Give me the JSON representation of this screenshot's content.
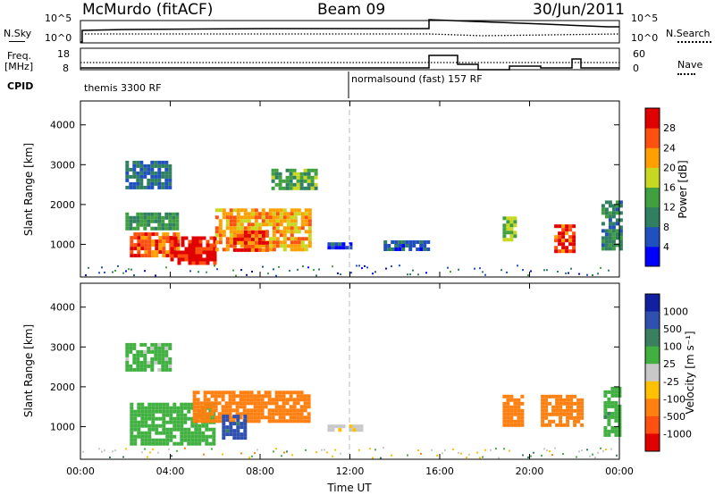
{
  "header": {
    "station": "McMurdo (fitACF)",
    "beam": "Beam 09",
    "date": "30/Jun/2011"
  },
  "panels": {
    "nsky_label": "N.Sky",
    "nsearch_label": "N.Search",
    "freq_label": "Freq.",
    "freq_unit": "[MHz]",
    "nave_label": "Nave",
    "cpid_label": "CPID",
    "noise_left_ticks": [
      "10^5",
      "10^0"
    ],
    "noise_right_ticks": [
      "10^5",
      "10^0"
    ],
    "freq_left_ticks": [
      "18",
      "8"
    ],
    "nave_right_ticks": [
      "60",
      "0"
    ],
    "cpid_segments": [
      "themis 3300 RF",
      "normalsound (fast) 157 RF"
    ]
  },
  "axes": {
    "y_label": "Slant Range [km]",
    "y_ticks": [
      "1000",
      "2000",
      "3000",
      "4000"
    ],
    "x_label": "Time UT",
    "x_ticks": [
      "00:00",
      "04:00",
      "08:00",
      "12:00",
      "16:00",
      "20:00",
      "00:00"
    ]
  },
  "colorbars": {
    "power": {
      "label": "Power [dB]",
      "ticks": [
        "4",
        "8",
        "12",
        "16",
        "20",
        "24",
        "28"
      ]
    },
    "velocity": {
      "label": "Velocity [m s⁻¹]",
      "ticks": [
        "1000",
        "500",
        "100",
        "25",
        "-25",
        "-100",
        "-500",
        "-1000"
      ]
    }
  },
  "chart_data": [
    {
      "type": "heatmap",
      "quantity": "power",
      "units": "dB",
      "xlabel": "Time UT",
      "ylabel": "Slant Range [km]",
      "xlim": [
        0,
        24
      ],
      "ylim": [
        180,
        4600
      ],
      "clim": [
        0,
        30
      ],
      "regions": [
        {
          "t": [
            2.2,
            4.3
          ],
          "r": [
            750,
            1300
          ],
          "value": 26
        },
        {
          "t": [
            4.0,
            6.0
          ],
          "r": [
            550,
            1200
          ],
          "value": 29
        },
        {
          "t": [
            6.0,
            10.2
          ],
          "r": [
            850,
            1900
          ],
          "value": 22
        },
        {
          "t": [
            6.8,
            8.3
          ],
          "r": [
            900,
            1350
          ],
          "value": 27
        },
        {
          "t": [
            2.0,
            4.3
          ],
          "r": [
            1400,
            1800
          ],
          "value": 12
        },
        {
          "t": [
            2.0,
            4.0
          ],
          "r": [
            2400,
            3100
          ],
          "value": 8
        },
        {
          "t": [
            8.5,
            10.5
          ],
          "r": [
            2400,
            2900
          ],
          "value": 14
        },
        {
          "t": [
            11.0,
            12.0
          ],
          "r": [
            950,
            1050
          ],
          "value": 5
        },
        {
          "t": [
            13.5,
            15.5
          ],
          "r": [
            900,
            1100
          ],
          "value": 6
        },
        {
          "t": [
            18.8,
            19.3
          ],
          "r": [
            1100,
            1700
          ],
          "value": 16
        },
        {
          "t": [
            21.1,
            21.9
          ],
          "r": [
            800,
            1500
          ],
          "value": 27
        },
        {
          "t": [
            23.2,
            24.0
          ],
          "r": [
            900,
            2100
          ],
          "value": 10
        }
      ]
    },
    {
      "type": "heatmap",
      "quantity": "velocity",
      "units": "m s-1",
      "xlabel": "Time UT",
      "ylabel": "Slant Range [km]",
      "xlim": [
        0,
        24
      ],
      "ylim": [
        180,
        4600
      ],
      "clim": [
        -1000,
        1000
      ],
      "regions": [
        {
          "t": [
            2.2,
            6.0
          ],
          "r": [
            600,
            1600
          ],
          "value": 60
        },
        {
          "t": [
            5.0,
            10.2
          ],
          "r": [
            1100,
            1900
          ],
          "value": -150
        },
        {
          "t": [
            6.3,
            7.3
          ],
          "r": [
            700,
            1300
          ],
          "value": 700
        },
        {
          "t": [
            2.0,
            4.0
          ],
          "r": [
            2400,
            3100
          ],
          "value": 40
        },
        {
          "t": [
            11.0,
            12.5
          ],
          "r": [
            900,
            1050
          ],
          "value": -20
        },
        {
          "t": [
            18.8,
            19.6
          ],
          "r": [
            1000,
            1800
          ],
          "value": -150
        },
        {
          "t": [
            20.5,
            22.3
          ],
          "r": [
            1000,
            1800
          ],
          "value": -150
        },
        {
          "t": [
            23.3,
            24.0
          ],
          "r": [
            800,
            2000
          ],
          "value": 80
        }
      ]
    }
  ]
}
